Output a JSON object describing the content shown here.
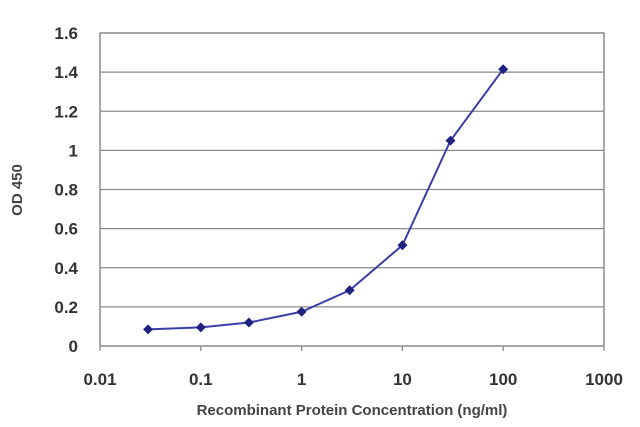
{
  "chart_data": {
    "type": "line",
    "xscale": "log",
    "xlabel": "Recombinant Protein Concentration (ng/ml)",
    "ylabel": "OD 450",
    "xlim": [
      0.01,
      1000
    ],
    "ylim": [
      0,
      1.6
    ],
    "xticks": [
      0.01,
      0.1,
      1,
      10,
      100,
      1000
    ],
    "xtick_labels": [
      "0.01",
      "0.1",
      "1",
      "10",
      "100",
      "1000"
    ],
    "yticks": [
      0,
      0.2,
      0.4,
      0.6,
      0.8,
      1,
      1.2,
      1.4,
      1.6
    ],
    "ytick_labels": [
      "0",
      "0.2",
      "0.4",
      "0.6",
      "0.8",
      "1",
      "1.2",
      "1.4",
      "1.6"
    ],
    "grid": "horizontal",
    "legend": "none",
    "series": [
      {
        "x": [
          0.03,
          0.1,
          0.3,
          1,
          3,
          10,
          30,
          100
        ],
        "y": [
          0.085,
          0.095,
          0.12,
          0.175,
          0.285,
          0.515,
          1.05,
          1.415
        ],
        "color": "#2b2f8f",
        "marker": "diamond"
      }
    ],
    "colors": {
      "line": "#3a3fa8",
      "marker": "#1f2380",
      "grid": "#8a8a8a",
      "plot_border": "#8a8a8a"
    }
  }
}
